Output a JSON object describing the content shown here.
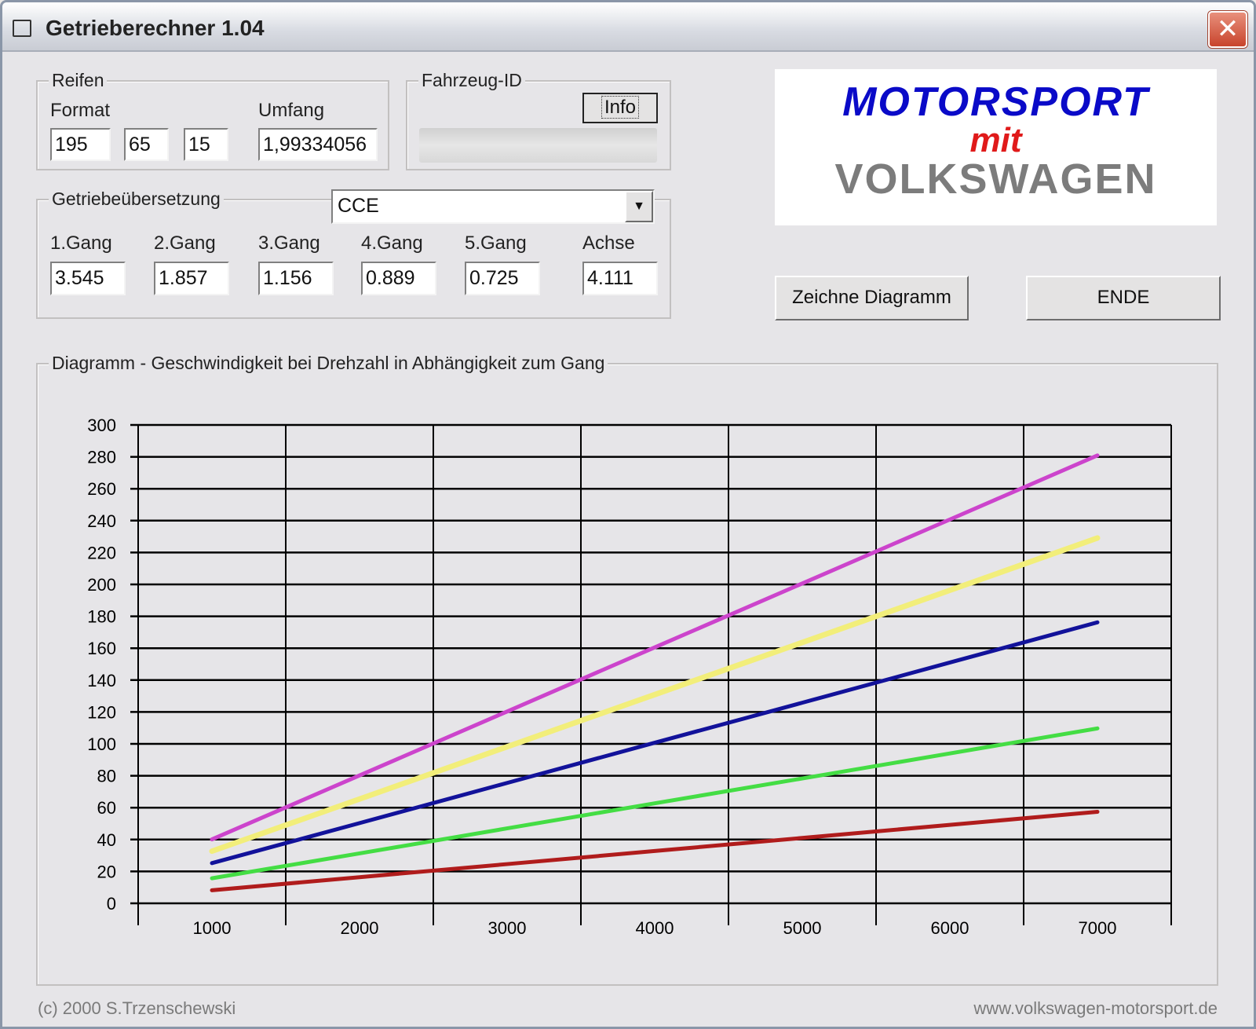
{
  "window": {
    "title": "Getrieberechner 1.04",
    "close_label": "✕"
  },
  "reifen": {
    "label": "Reifen",
    "format_label": "Format",
    "umfang_label": "Umfang",
    "width": "195",
    "ratio": "65",
    "rim": "15",
    "umfang": "1,99334056"
  },
  "fahrzeug": {
    "label": "Fahrzeug-ID",
    "info_button": "Info",
    "id_value": ""
  },
  "getriebe": {
    "label": "Getriebeübersetzung",
    "code": "CCE",
    "gears": [
      {
        "label": "1.Gang",
        "value": "3.545"
      },
      {
        "label": "2.Gang",
        "value": "1.857"
      },
      {
        "label": "3.Gang",
        "value": "1.156"
      },
      {
        "label": "4.Gang",
        "value": "0.889"
      },
      {
        "label": "5.Gang",
        "value": "0.725"
      },
      {
        "label": "Achse",
        "value": "4.111"
      }
    ]
  },
  "logo": {
    "line1": "MOTORSPORT",
    "line2": "mit",
    "line3": "VOLKSWAGEN"
  },
  "buttons": {
    "draw": "Zeichne Diagramm",
    "end": "ENDE"
  },
  "diagram": {
    "label": "Diagramm - Geschwindigkeit bei Drehzahl in Abhängigkeit zum Gang"
  },
  "footer": {
    "copyright": "(c) 2000 S.Trzenschewski",
    "url": "www.volkswagen-motorsport.de"
  },
  "chart_data": {
    "type": "line",
    "title": "Diagramm - Geschwindigkeit bei Drehzahl in Abhängigkeit zum Gang",
    "xlabel": "",
    "ylabel": "",
    "x": [
      1000,
      2000,
      3000,
      4000,
      5000,
      6000,
      7000
    ],
    "x_ticks": [
      "1000",
      "2000",
      "3000",
      "4000",
      "5000",
      "6000",
      "7000"
    ],
    "y_ticks": [
      "0",
      "20",
      "40",
      "60",
      "80",
      "100",
      "120",
      "140",
      "160",
      "180",
      "200",
      "220",
      "240",
      "260",
      "280",
      "300"
    ],
    "ylim": [
      0,
      300
    ],
    "grid": true,
    "series": [
      {
        "name": "1.Gang",
        "color": "#b01c1c",
        "values": [
          8.2,
          16.4,
          24.6,
          32.8,
          41.0,
          49.2,
          57.4
        ]
      },
      {
        "name": "2.Gang",
        "color": "#44dd44",
        "values": [
          15.7,
          31.3,
          47.0,
          62.7,
          78.3,
          94.0,
          109.7
        ]
      },
      {
        "name": "3.Gang",
        "color": "#12129a",
        "values": [
          25.2,
          50.3,
          75.5,
          100.7,
          125.8,
          151.0,
          176.2
        ]
      },
      {
        "name": "4.Gang",
        "color": "#f2ee7a",
        "values": [
          32.7,
          65.4,
          98.2,
          130.9,
          163.6,
          196.3,
          229.1
        ]
      },
      {
        "name": "5.Gang",
        "color": "#cc44cc",
        "values": [
          40.1,
          80.2,
          120.3,
          160.5,
          200.6,
          240.7,
          280.9
        ]
      }
    ]
  }
}
